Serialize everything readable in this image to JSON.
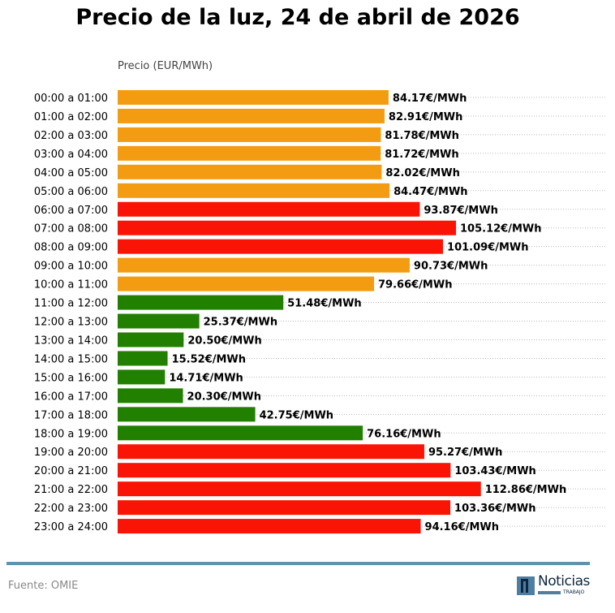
{
  "chart_data": {
    "type": "bar",
    "orientation": "horizontal",
    "title": "Precio de la luz, 24 de abril de 2026",
    "xlabel": "Precio (EUR/MWh)",
    "xlim": [
      0,
      152
    ],
    "grid": "dotted horizontal lines per row",
    "value_suffix": "€/MWh",
    "categories": [
      "00:00 a 01:00",
      "01:00 a 02:00",
      "02:00 a 03:00",
      "03:00 a 04:00",
      "04:00 a 05:00",
      "05:00 a 06:00",
      "06:00 a 07:00",
      "07:00 a 08:00",
      "08:00 a 09:00",
      "09:00 a 10:00",
      "10:00 a 11:00",
      "11:00 a 12:00",
      "12:00 a 13:00",
      "13:00 a 14:00",
      "14:00 a 15:00",
      "15:00 a 16:00",
      "16:00 a 17:00",
      "17:00 a 18:00",
      "18:00 a 19:00",
      "19:00 a 20:00",
      "20:00 a 21:00",
      "21:00 a 22:00",
      "22:00 a 23:00",
      "23:00 a 24:00"
    ],
    "values": [
      84.17,
      82.91,
      81.78,
      81.72,
      82.02,
      84.47,
      93.87,
      105.12,
      101.09,
      90.73,
      79.66,
      51.48,
      25.37,
      20.5,
      15.52,
      14.71,
      20.3,
      42.75,
      76.16,
      95.27,
      103.43,
      112.86,
      103.36,
      94.16
    ],
    "value_labels": [
      "84.17€/MWh",
      "82.91€/MWh",
      "81.78€/MWh",
      "81.72€/MWh",
      "82.02€/MWh",
      "84.47€/MWh",
      "93.87€/MWh",
      "105.12€/MWh",
      "101.09€/MWh",
      "90.73€/MWh",
      "79.66€/MWh",
      "51.48€/MWh",
      "25.37€/MWh",
      "20.50€/MWh",
      "15.52€/MWh",
      "14.71€/MWh",
      "20.30€/MWh",
      "42.75€/MWh",
      "76.16€/MWh",
      "95.27€/MWh",
      "103.43€/MWh",
      "112.86€/MWh",
      "103.36€/MWh",
      "94.16€/MWh"
    ],
    "bar_levels": [
      "mid",
      "mid",
      "mid",
      "mid",
      "mid",
      "mid",
      "high",
      "high",
      "high",
      "mid",
      "mid",
      "low",
      "low",
      "low",
      "low",
      "low",
      "low",
      "low",
      "low",
      "high",
      "high",
      "high",
      "high",
      "high"
    ],
    "colors": {
      "low": "#218000",
      "mid": "#f39c12",
      "high": "#fa1405"
    }
  },
  "footer": {
    "source": "Fuente: OMIE",
    "logo_text": "Noticias",
    "logo_sub": "TRABAJO"
  }
}
